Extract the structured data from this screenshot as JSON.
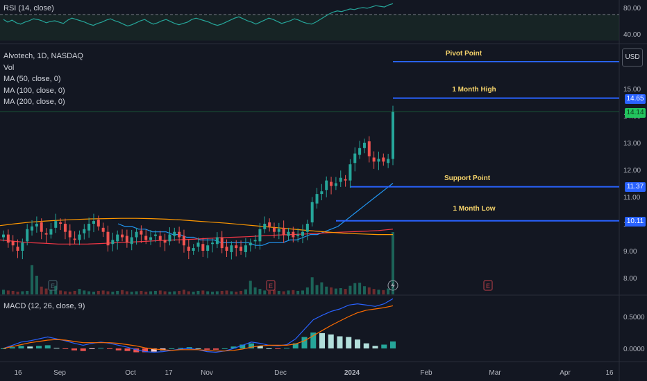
{
  "symbol": {
    "name": "Alvotech",
    "interval": "1D",
    "exchange": "NASDAQ"
  },
  "indicators": {
    "rsi": "RSI (14, close)",
    "vol": "Vol",
    "ma50": "MA (50, close, 0)",
    "ma100": "MA (100, close, 0)",
    "ma200": "MA (200, close, 0)",
    "macd": "MACD (12, 26, close, 9)"
  },
  "currency_label": "USD",
  "levels": {
    "pivot": {
      "label": "Pivot Point",
      "price": 16.0
    },
    "month_high": {
      "label": "1 Month High",
      "price": 14.65,
      "tag": "14.65"
    },
    "support": {
      "label": "Support Point",
      "price": 11.37,
      "tag": "11.37"
    },
    "month_low": {
      "label": "1 Month Low",
      "price": 10.11,
      "tag": "10.11"
    }
  },
  "last_price": {
    "value": 14.14,
    "tag": "14.14"
  },
  "colors": {
    "up": "#26a69a",
    "down": "#ef5350",
    "level": "#2962ff",
    "ma_red": "#f23645",
    "ma_blue": "#2196f3",
    "ma_orange": "#ff9800"
  },
  "chart_data": [
    {
      "type": "line",
      "title": "RSI (14, close)",
      "y_ticks": [
        "80.00",
        "40.00"
      ],
      "ylim": [
        30,
        90
      ],
      "series": [
        {
          "values": [
            62,
            58,
            61,
            57,
            55,
            58,
            60,
            63,
            62,
            60,
            57,
            59,
            60,
            58,
            56,
            61,
            64,
            62,
            60,
            58,
            55,
            53,
            56,
            58,
            61,
            63,
            60,
            58,
            55,
            52,
            54,
            57,
            60,
            62,
            58,
            55,
            57,
            60,
            62,
            59,
            56,
            54,
            56,
            58,
            62,
            64,
            62,
            60,
            58,
            55,
            53,
            55,
            58,
            61,
            64,
            66,
            63,
            60,
            58,
            55,
            58,
            61,
            64,
            62,
            59,
            56,
            58,
            60,
            63,
            61,
            58,
            56,
            55,
            58,
            62,
            66,
            70,
            73,
            75,
            74,
            76,
            78,
            77,
            79,
            80,
            79,
            81,
            83,
            82,
            81,
            84,
            86
          ]
        }
      ]
    },
    {
      "type": "candlestick",
      "title": "Alvotech, 1D, NASDAQ",
      "y_ticks": [
        "15.00",
        "14.00",
        "13.00",
        "12.00",
        "11.00",
        "10.00",
        "9.00",
        "8.00"
      ],
      "ylim": [
        7.8,
        17.5
      ],
      "x_ticks": [
        "16",
        "Sep",
        "Oct",
        "17",
        "Nov",
        "Dec",
        "2024",
        "Feb",
        "Mar",
        "Apr",
        "16"
      ],
      "closes": [
        9.6,
        9.3,
        9.2,
        9.0,
        9.3,
        9.8,
        9.9,
        10.0,
        9.7,
        9.6,
        9.8,
        10.1,
        10.0,
        9.7,
        9.5,
        9.4,
        9.6,
        9.8,
        10.0,
        10.1,
        9.9,
        9.7,
        9.2,
        9.4,
        9.6,
        9.5,
        9.3,
        9.5,
        9.7,
        9.6,
        9.4,
        9.5,
        9.6,
        9.4,
        9.3,
        9.6,
        9.7,
        9.5,
        9.2,
        9.0,
        9.1,
        9.3,
        9.0,
        9.2,
        9.3,
        9.5,
        9.1,
        9.0,
        9.2,
        9.1,
        9.0,
        9.2,
        9.3,
        9.4,
        9.8,
        10.0,
        9.9,
        9.7,
        9.8,
        9.6,
        9.7,
        9.5,
        9.6,
        9.7,
        10.0,
        10.8,
        11.1,
        11.2,
        11.6,
        11.4,
        11.5,
        11.7,
        11.6,
        12.2,
        12.6,
        12.8,
        13.0,
        12.5,
        12.3,
        12.4,
        12.3,
        12.4,
        14.14
      ],
      "volumes": [
        1.2,
        1.0,
        0.9,
        0.7,
        0.8,
        0.9,
        7.5,
        4.8,
        2.0,
        1.5,
        1.2,
        2.2,
        1.0,
        0.8,
        0.7,
        0.9,
        1.4,
        1.0,
        0.8,
        0.7,
        0.9,
        1.0,
        0.8,
        0.7,
        0.9,
        1.1,
        0.8,
        0.7,
        0.8,
        0.9,
        0.7,
        0.8,
        0.9,
        1.0,
        0.8,
        0.7,
        0.8,
        0.9,
        1.2,
        0.8,
        0.7,
        0.9,
        1.0,
        0.8,
        0.7,
        0.8,
        0.9,
        1.0,
        0.8,
        0.7,
        0.9,
        1.3,
        3.5,
        1.8,
        1.4,
        1.0,
        0.9,
        1.2,
        0.9,
        0.8,
        1.0,
        1.1,
        0.9,
        1.0,
        1.8,
        4.4,
        2.4,
        3.1,
        2.0,
        1.8,
        1.5,
        1.6,
        1.4,
        2.2,
        2.9,
        3.0,
        2.1,
        1.8,
        1.4,
        1.2,
        1.1,
        1.5,
        16.0
      ],
      "series": [
        {
          "name": "MA (50, close, 0)",
          "values": [
            10.0,
            9.9,
            9.9,
            9.8,
            9.8,
            9.7,
            9.7,
            9.7,
            9.6,
            9.6,
            9.5,
            9.5,
            9.4,
            9.4,
            9.4,
            9.3,
            9.3,
            9.3,
            9.3,
            9.3,
            9.2,
            9.2,
            9.3,
            9.3,
            9.3,
            9.4,
            9.4,
            9.5,
            9.6,
            9.6,
            9.7,
            9.8,
            9.9,
            10.1,
            10.3,
            10.5,
            10.7,
            10.9,
            11.1,
            11.3,
            11.5
          ]
        },
        {
          "name": "MA (100, close, 0)",
          "values": [
            9.4,
            9.35,
            9.3,
            9.28,
            9.25,
            9.25,
            9.25,
            9.27,
            9.3,
            9.32,
            9.35,
            9.38,
            9.4,
            9.42,
            9.45,
            9.48,
            9.5,
            9.52,
            9.55,
            9.58,
            9.6,
            9.62,
            9.65,
            9.68,
            9.7,
            9.72,
            9.75,
            9.8
          ]
        },
        {
          "name": "MA (200, close, 0)",
          "values": [
            9.93,
            10.0,
            10.06,
            10.1,
            10.13,
            10.16,
            10.18,
            10.19,
            10.2,
            10.2,
            10.19,
            10.17,
            10.14,
            10.1,
            10.06,
            10.02,
            9.97,
            9.92,
            9.87,
            9.82,
            9.77,
            9.72,
            9.68,
            9.64,
            9.62,
            9.6,
            9.6
          ]
        }
      ]
    },
    {
      "type": "line",
      "title": "MACD (12, 26, close, 9)",
      "y_ticks": [
        "0.5000",
        "0.0000"
      ],
      "ylim": [
        -0.15,
        0.9
      ],
      "series": [
        {
          "values": [
            0.0,
            0.05,
            0.1,
            0.12,
            0.15,
            0.18,
            0.15,
            0.12,
            0.08,
            0.05,
            0.08,
            0.1,
            0.08,
            0.05,
            0.02,
            -0.02,
            -0.05,
            -0.06,
            -0.05,
            -0.03,
            -0.01,
            0.0,
            -0.02,
            -0.05,
            -0.06,
            -0.04,
            0.0,
            0.05,
            0.1,
            0.08,
            0.05,
            0.04,
            0.06,
            0.15,
            0.3,
            0.45,
            0.52,
            0.58,
            0.62,
            0.68,
            0.7,
            0.68,
            0.66,
            0.7,
            0.78
          ]
        },
        {
          "values": [
            0.0,
            0.03,
            0.06,
            0.09,
            0.11,
            0.13,
            0.14,
            0.13,
            0.11,
            0.09,
            0.09,
            0.09,
            0.09,
            0.08,
            0.06,
            0.04,
            0.01,
            -0.01,
            -0.02,
            -0.03,
            -0.02,
            -0.02,
            -0.02,
            -0.03,
            -0.04,
            -0.04,
            -0.03,
            -0.01,
            0.02,
            0.04,
            0.05,
            0.05,
            0.05,
            0.07,
            0.12,
            0.2,
            0.28,
            0.36,
            0.43,
            0.5,
            0.56,
            0.6,
            0.62,
            0.64,
            0.67
          ]
        }
      ],
      "histogram": [
        0.0,
        0.02,
        0.04,
        0.03,
        0.04,
        0.05,
        0.01,
        -0.01,
        -0.03,
        -0.04,
        -0.01,
        0.01,
        -0.01,
        -0.03,
        -0.04,
        -0.06,
        -0.06,
        -0.05,
        -0.03,
        0.0,
        0.01,
        0.02,
        0.0,
        -0.02,
        -0.02,
        0.0,
        0.03,
        0.06,
        0.08,
        0.04,
        0.0,
        -0.01,
        0.01,
        0.08,
        0.18,
        0.25,
        0.24,
        0.22,
        0.19,
        0.18,
        0.14,
        0.08,
        0.04,
        0.06,
        0.11
      ]
    }
  ]
}
